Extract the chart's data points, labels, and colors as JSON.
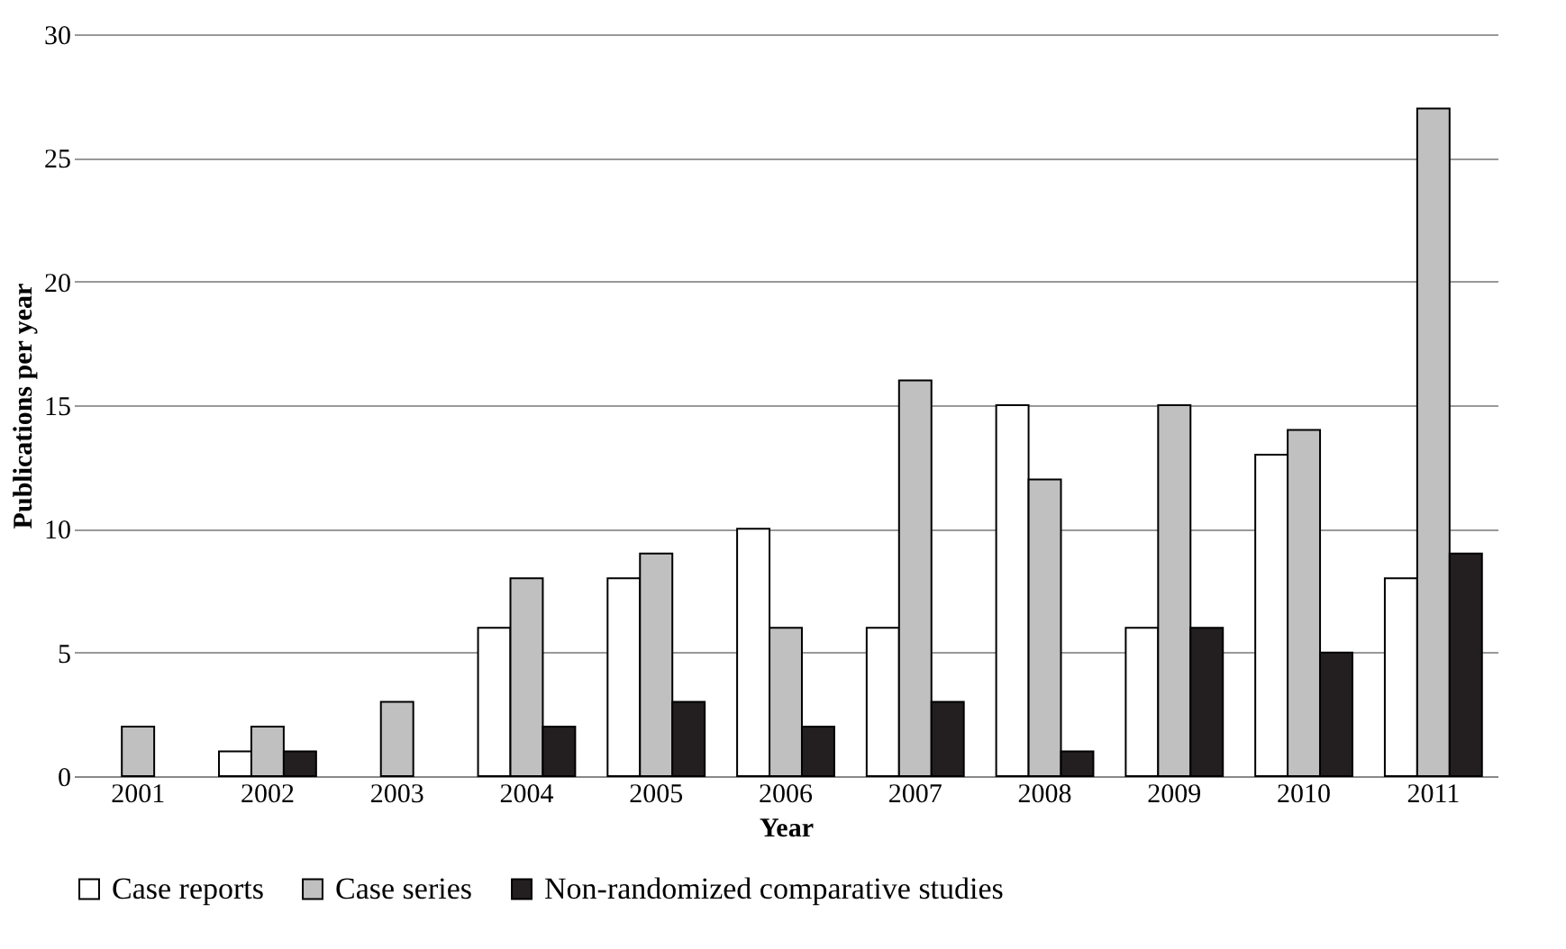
{
  "chart_data": {
    "type": "bar",
    "xlabel": "Year",
    "ylabel": "Publications per year",
    "categories": [
      "2001",
      "2002",
      "2003",
      "2004",
      "2005",
      "2006",
      "2007",
      "2008",
      "2009",
      "2010",
      "2011"
    ],
    "series": [
      {
        "name": "Case reports",
        "color": "#ffffff",
        "values": [
          0,
          1,
          0,
          6,
          8,
          10,
          6,
          15,
          6,
          13,
          8
        ]
      },
      {
        "name": "Case series",
        "color": "#c0c0c0",
        "values": [
          2,
          2,
          3,
          8,
          9,
          6,
          16,
          12,
          15,
          14,
          27
        ]
      },
      {
        "name": "Non-randomized comparative studies",
        "color": "#231f20",
        "values": [
          0,
          1,
          0,
          2,
          3,
          2,
          3,
          1,
          6,
          5,
          9
        ]
      }
    ],
    "ylim": [
      0,
      30
    ],
    "yticks": [
      0,
      5,
      10,
      15,
      20,
      25,
      30
    ],
    "grid": "y",
    "legend": "bottom"
  }
}
